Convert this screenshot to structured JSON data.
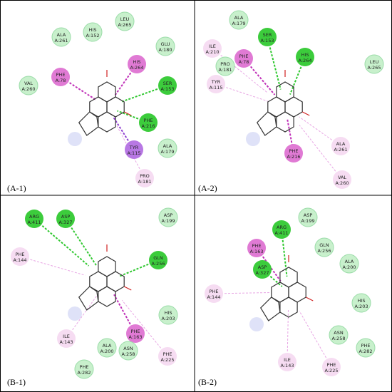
{
  "panels": [
    {
      "label": "(A-1)",
      "residues": [
        {
          "name": "LEU",
          "id": "A:265",
          "color": "#c8f0cc"
        },
        {
          "name": "HIS",
          "id": "A:152",
          "color": "#c8f0cc"
        },
        {
          "name": "ALA",
          "id": "A:261",
          "color": "#c8f0cc"
        },
        {
          "name": "GLU",
          "id": "A:180",
          "color": "#c8f0cc"
        },
        {
          "name": "HIS",
          "id": "A:264",
          "color": "#e07ad4"
        },
        {
          "name": "PHE",
          "id": "A:78",
          "color": "#e07ad4"
        },
        {
          "name": "VAL",
          "id": "A:260",
          "color": "#c8f0cc"
        },
        {
          "name": "SER",
          "id": "A:153",
          "color": "#3ccc3c"
        },
        {
          "name": "PHE",
          "id": "A:216",
          "color": "#3ccc3c"
        },
        {
          "name": "ALA",
          "id": "A:179",
          "color": "#c8f0cc"
        },
        {
          "name": "TYR",
          "id": "A:115",
          "color": "#b878e4"
        },
        {
          "name": "PRO",
          "id": "A:181",
          "color": "#f6dcf2"
        }
      ]
    },
    {
      "label": "(A-2)",
      "residues": [
        {
          "name": "ALA",
          "id": "A:179",
          "color": "#c8f0cc"
        },
        {
          "name": "SER",
          "id": "A:153",
          "color": "#3ccc3c"
        },
        {
          "name": "ILE",
          "id": "A:210",
          "color": "#f6dcf2"
        },
        {
          "name": "HIS",
          "id": "A:264",
          "color": "#3ccc3c"
        },
        {
          "name": "LEU",
          "id": "A:265",
          "color": "#c8f0cc"
        },
        {
          "name": "PHE",
          "id": "A:78",
          "color": "#e07ad4"
        },
        {
          "name": "PRO",
          "id": "A:181",
          "color": "#c8f0cc"
        },
        {
          "name": "TYR",
          "id": "A:115",
          "color": "#f6dcf2"
        },
        {
          "name": "PHE",
          "id": "A:216",
          "color": "#e07ad4"
        },
        {
          "name": "ALA",
          "id": "A:261",
          "color": "#f6dcf2"
        },
        {
          "name": "VAL",
          "id": "A:260",
          "color": "#f6dcf2"
        }
      ]
    },
    {
      "label": "(B-1)",
      "residues": [
        {
          "name": "ARG",
          "id": "A:411",
          "color": "#3ccc3c"
        },
        {
          "name": "ASP",
          "id": "A:327",
          "color": "#3ccc3c"
        },
        {
          "name": "ASP",
          "id": "A:199",
          "color": "#c8f0cc"
        },
        {
          "name": "GLN",
          "id": "A:256",
          "color": "#3ccc3c"
        },
        {
          "name": "PHE",
          "id": "A:144",
          "color": "#f6dcf2"
        },
        {
          "name": "HIS",
          "id": "A:203",
          "color": "#c8f0cc"
        },
        {
          "name": "ILE",
          "id": "A:143",
          "color": "#f6dcf2"
        },
        {
          "name": "PHE",
          "id": "A:163",
          "color": "#e07ad4"
        },
        {
          "name": "ALA",
          "id": "A:200",
          "color": "#c8f0cc"
        },
        {
          "name": "ASN",
          "id": "A:258",
          "color": "#c8f0cc"
        },
        {
          "name": "PHE",
          "id": "A:225",
          "color": "#f6dcf2"
        },
        {
          "name": "PHE",
          "id": "A:282",
          "color": "#c8f0cc"
        }
      ]
    },
    {
      "label": "(B-2)",
      "residues": [
        {
          "name": "ASP",
          "id": "A:199",
          "color": "#c8f0cc"
        },
        {
          "name": "ARG",
          "id": "A:411",
          "color": "#3ccc3c"
        },
        {
          "name": "PHE",
          "id": "A:163",
          "color": "#e07ad4"
        },
        {
          "name": "GLN",
          "id": "A:256",
          "color": "#c8f0cc"
        },
        {
          "name": "ASP",
          "id": "A:327",
          "color": "#3ccc3c"
        },
        {
          "name": "ALA",
          "id": "A:200",
          "color": "#c8f0cc"
        },
        {
          "name": "PHE",
          "id": "A:144",
          "color": "#f6dcf2"
        },
        {
          "name": "HIS",
          "id": "A:203",
          "color": "#c8f0cc"
        },
        {
          "name": "ASN",
          "id": "A:258",
          "color": "#c8f0cc"
        },
        {
          "name": "PHE",
          "id": "A:282",
          "color": "#c8f0cc"
        },
        {
          "name": "ILE",
          "id": "A:143",
          "color": "#f6dcf2"
        },
        {
          "name": "PHE",
          "id": "A:225",
          "color": "#f6dcf2"
        }
      ]
    }
  ]
}
